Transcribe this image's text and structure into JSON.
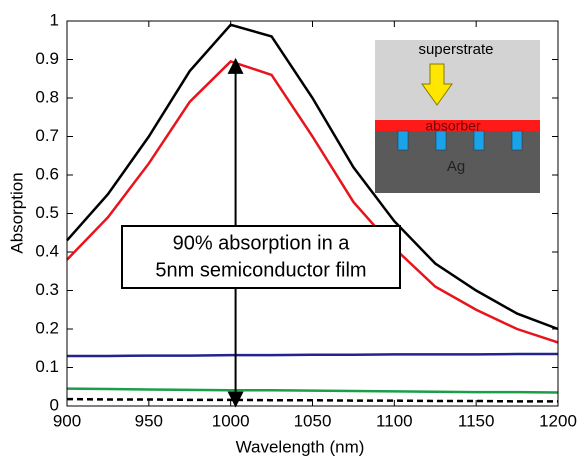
{
  "chart_data": {
    "type": "line",
    "xlabel": "Wavelength (nm)",
    "ylabel": "Absorption",
    "x": [
      900,
      925,
      950,
      975,
      1000,
      1025,
      1050,
      1075,
      1100,
      1125,
      1150,
      1175,
      1200
    ],
    "series": [
      {
        "color": "#000000",
        "style": "solid",
        "values": [
          0.43,
          0.55,
          0.7,
          0.87,
          0.99,
          0.96,
          0.8,
          0.62,
          0.48,
          0.37,
          0.3,
          0.24,
          0.2
        ]
      },
      {
        "color": "#e8141c",
        "style": "solid",
        "values": [
          0.38,
          0.49,
          0.63,
          0.79,
          0.895,
          0.86,
          0.7,
          0.53,
          0.41,
          0.31,
          0.25,
          0.2,
          0.165
        ]
      },
      {
        "color": "#23238e",
        "style": "solid",
        "values": [
          0.13,
          0.13,
          0.131,
          0.131,
          0.132,
          0.132,
          0.133,
          0.133,
          0.134,
          0.134,
          0.134,
          0.135,
          0.135
        ]
      },
      {
        "color": "#1a9e4a",
        "style": "solid",
        "values": [
          0.045,
          0.044,
          0.043,
          0.042,
          0.041,
          0.041,
          0.04,
          0.039,
          0.038,
          0.037,
          0.036,
          0.036,
          0.035
        ]
      },
      {
        "color": "#000000",
        "style": "dashed",
        "values": [
          0.018,
          0.017,
          0.017,
          0.016,
          0.016,
          0.015,
          0.015,
          0.014,
          0.014,
          0.013,
          0.013,
          0.012,
          0.012
        ]
      }
    ],
    "xlim": [
      900,
      1200
    ],
    "xticks": [
      900,
      950,
      1000,
      1050,
      1100,
      1150,
      1200
    ],
    "ylim": [
      0,
      1
    ],
    "yticks": [
      0,
      0.1,
      0.2,
      0.3,
      0.4,
      0.5,
      0.6,
      0.7,
      0.8,
      0.9,
      1
    ],
    "annotation": {
      "lines": [
        "90% absorption in a",
        "5nm semiconductor film"
      ],
      "arrow_x": 1003,
      "arrow_from": 0.9,
      "arrow_to": 0
    },
    "inset": {
      "superstrate": "superstrate",
      "absorber": "absorber",
      "metal": "Ag"
    }
  }
}
